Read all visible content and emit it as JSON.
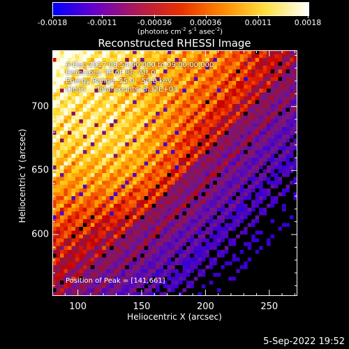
{
  "colorbar": {
    "tick_labels": [
      "-0.0018",
      "-0.0011",
      "-0.00036",
      "0.00036",
      "0.0011",
      "0.0018"
    ],
    "tick_values": [
      -0.0018,
      -0.0011,
      -0.00036,
      0.00036,
      0.0011,
      0.0018
    ],
    "units_main": "(photons cm",
    "units_exp1": "-2",
    "units_mid1": " s",
    "units_exp2": "-1",
    "units_mid2": " asec",
    "units_exp3": "-2",
    "units_end": ")",
    "colors": [
      "#0000ff",
      "#6a00c8",
      "#b01a50",
      "#e83000",
      "#ff8a00",
      "#ffe040",
      "#ffffff"
    ]
  },
  "chart_data": {
    "type": "heatmap",
    "title": "Reconstructed RHESSI Image",
    "xlabel": "Heliocentric X (arcsec)",
    "ylabel": "Heliocentric Y (arcsec)",
    "xlim": [
      80,
      272
    ],
    "ylim": [
      552,
      744
    ],
    "x_ticks": [
      100,
      150,
      200,
      250
    ],
    "x_tick_labels": [
      "100",
      "150",
      "200",
      "250"
    ],
    "y_ticks": [
      600,
      650,
      700
    ],
    "y_tick_labels": [
      "600",
      "650",
      "700"
    ],
    "zlim": [
      -0.0018,
      0.0018
    ],
    "peak": [
      141,
      661
    ],
    "annotations": [
      "9-Dec-2017 08:54:00.000 to 09:00:00.000",
      "Detectors: 3F 6F 8F, Att 0",
      "Energy Range: 25.0 - 50.0 keV",
      "Clean     Total counts: 8.32E+03"
    ],
    "peak_label": "Position of Peak = [141,661]"
  },
  "timestamp": "5-Sep-2022 19:52"
}
